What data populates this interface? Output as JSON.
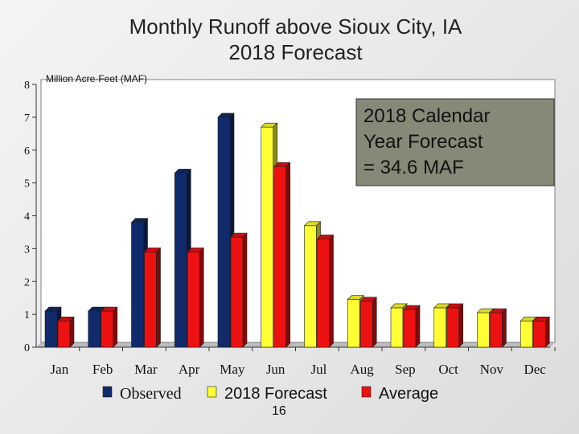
{
  "slide": {
    "title_line1": "Monthly Runoff above Sioux City, IA",
    "title_line2": "2018 Forecast",
    "page_number": "16"
  },
  "chart_data": {
    "type": "bar",
    "ylabel": "Million Acre-Feet (MAF)",
    "ylim": [
      0,
      8
    ],
    "yticks": [
      0,
      1,
      2,
      3,
      4,
      5,
      6,
      7,
      8
    ],
    "categories": [
      "Jan",
      "Feb",
      "Mar",
      "Apr",
      "May",
      "Jun",
      "Jul",
      "Aug",
      "Sep",
      "Oct",
      "Nov",
      "Dec"
    ],
    "series": [
      {
        "name": "Observed",
        "color": "#102a6b",
        "values": [
          1.1,
          1.1,
          3.8,
          5.3,
          7.0,
          null,
          null,
          null,
          null,
          null,
          null,
          null
        ]
      },
      {
        "name": "2018 Forecast",
        "color": "#ffff33",
        "values": [
          null,
          null,
          null,
          null,
          null,
          6.7,
          3.7,
          1.45,
          1.2,
          1.2,
          1.05,
          0.8
        ]
      },
      {
        "name": "Average",
        "color": "#ee1111",
        "values": [
          0.8,
          1.1,
          2.9,
          2.9,
          3.35,
          5.5,
          3.3,
          1.4,
          1.15,
          1.2,
          1.05,
          0.8
        ]
      }
    ],
    "annotation": "2018 Calendar Year Forecast = 34.6 MAF",
    "annotation_lines": [
      "2018 Calendar",
      "Year Forecast",
      "= 34.6 MAF"
    ],
    "grid": false,
    "legend": "bottom"
  }
}
